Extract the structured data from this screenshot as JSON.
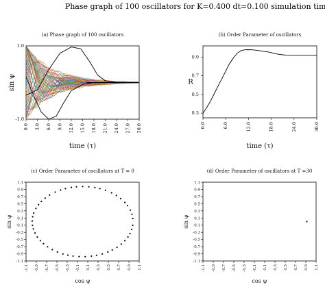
{
  "figure_title": "Phase graph of 100 oscillators for K=0.400 dt=0.100 simulation time=30",
  "chart_data": [
    {
      "id": "a",
      "type": "line",
      "title": "(a) Phase graph of 100 oscillators",
      "xlabel": "time (τ)",
      "ylabel": "sin ψ",
      "xlim": [
        0,
        30
      ],
      "ylim": [
        -1,
        1
      ],
      "x_ticks": [
        "0.0",
        "3.0",
        "6.0",
        "9.0",
        "12.0",
        "15.0",
        "18.0",
        "21.0",
        "24.0",
        "27.0",
        "30.0"
      ],
      "y_ticks": [
        "-1.0",
        "1.0"
      ],
      "series_count": 100,
      "converge_value": 0.0,
      "note_series": [
        {
          "x": [
            0,
            3,
            6,
            9,
            12,
            14.5,
            17,
            19,
            21,
            24,
            27,
            30
          ],
          "y": [
            -0.35,
            -0.2,
            0.35,
            0.8,
            0.97,
            0.92,
            0.55,
            0.2,
            0.05,
            0.0,
            0.0,
            0.0
          ],
          "color": "#000000"
        },
        {
          "x": [
            0,
            2,
            4,
            6,
            8,
            10,
            12,
            15,
            18,
            21,
            24,
            30
          ],
          "y": [
            0.15,
            -0.35,
            -0.8,
            -1.0,
            -0.92,
            -0.55,
            -0.22,
            -0.05,
            0.0,
            0.0,
            0.0,
            0.0
          ],
          "color": "#000000"
        }
      ]
    },
    {
      "id": "b",
      "type": "line",
      "title": "(b) Order Parameter of oscillators",
      "xlabel": "time (τ)",
      "ylabel": "R",
      "xlim": [
        0,
        30
      ],
      "ylim": [
        0.25,
        1.02
      ],
      "x_ticks": [
        "0.0",
        "6.0",
        "12.0",
        "18.0",
        "24.0",
        "30.0"
      ],
      "y_ticks": [
        "0.3",
        "0.5",
        "0.7",
        "0.9"
      ],
      "x": [
        0,
        1,
        2,
        3,
        4,
        5,
        6,
        7,
        8,
        9,
        10,
        11,
        12,
        13,
        14,
        15,
        16,
        17,
        18,
        19,
        20,
        21,
        22,
        23,
        24,
        25,
        26,
        27,
        28,
        29,
        30
      ],
      "y": [
        0.3,
        0.36,
        0.43,
        0.51,
        0.59,
        0.67,
        0.75,
        0.83,
        0.89,
        0.94,
        0.968,
        0.978,
        0.98,
        0.978,
        0.974,
        0.968,
        0.962,
        0.956,
        0.948,
        0.938,
        0.93,
        0.925,
        0.922,
        0.92,
        0.92,
        0.92,
        0.92,
        0.92,
        0.92,
        0.92,
        0.92
      ]
    },
    {
      "id": "c",
      "type": "scatter",
      "title": "(c) Order Parameter of oscillators at T = 0",
      "xlabel": "cos ψ",
      "ylabel": "sin ψ",
      "xlim": [
        -1.1,
        1.1
      ],
      "ylim": [
        -1.1,
        1.1
      ],
      "ticks": [
        "-1.1",
        "-0.9",
        "-0.7",
        "-0.5",
        "-0.3",
        "-0.1",
        "0.1",
        "0.3",
        "0.5",
        "0.7",
        "0.9",
        "1.1"
      ],
      "angles_deg": [
        5,
        12,
        19,
        27,
        33,
        41,
        48,
        55,
        63,
        70,
        76,
        83,
        90,
        97,
        103,
        110,
        116,
        123,
        131,
        138,
        145,
        151,
        158,
        166,
        172,
        179,
        186,
        192,
        199,
        206,
        213,
        219,
        226,
        233,
        240,
        247,
        253,
        259,
        266,
        273,
        280,
        286,
        293,
        300,
        306,
        313,
        320,
        327,
        334,
        340,
        347,
        354
      ]
    },
    {
      "id": "d",
      "type": "scatter",
      "title": "(d) Order Parameter of oscillators at T =30",
      "xlabel": "cos ψ",
      "ylabel": "sin ψ",
      "xlim": [
        -1.1,
        1.1
      ],
      "ylim": [
        -1.1,
        1.1
      ],
      "ticks": [
        "-1.1",
        "-0.9",
        "-0.7",
        "-0.5",
        "-0.3",
        "-0.1",
        "0.1",
        "0.3",
        "0.5",
        "0.7",
        "0.9",
        "1.1"
      ],
      "points": [
        [
          0.92,
          0.0
        ]
      ]
    }
  ]
}
